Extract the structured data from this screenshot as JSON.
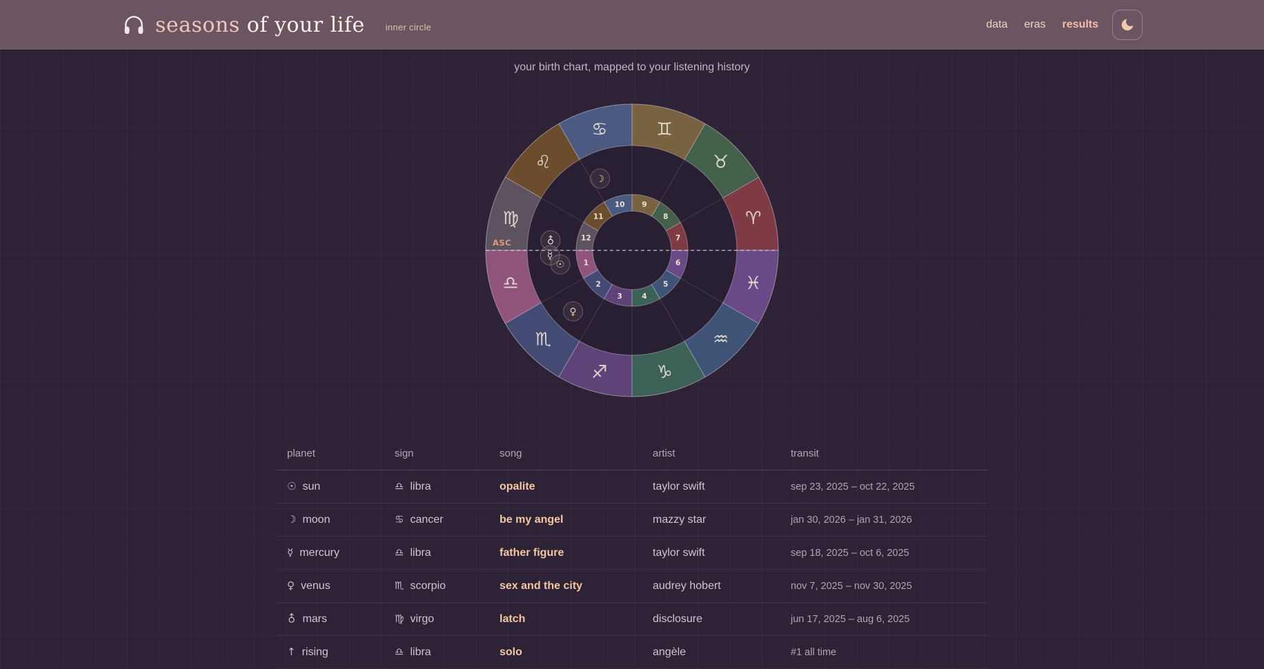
{
  "header": {
    "logo_icon": "headphones-icon",
    "title_primary": "seasons",
    "title_secondary": " of your life",
    "badge": "inner circle",
    "nav": [
      {
        "label": "data",
        "active": false
      },
      {
        "label": "eras",
        "active": false
      },
      {
        "label": "results",
        "active": true
      }
    ],
    "theme_toggle_icon": "moon-icon"
  },
  "subtitle": "your birth chart, mapped to your listening history",
  "chart": {
    "type": "natal-wheel",
    "asc_label": "ASC",
    "colors": {
      "interior": "#291f32",
      "asc": "#e29a77",
      "glyph": "rgba(232,224,212,0.92)",
      "house_number": "#ece2d3"
    },
    "signs": [
      {
        "name": "aries",
        "glyph": "♈",
        "color": "#7e3b45"
      },
      {
        "name": "taurus",
        "glyph": "♉",
        "color": "#42604a"
      },
      {
        "name": "gemini",
        "glyph": "♊",
        "color": "#786240"
      },
      {
        "name": "cancer",
        "glyph": "♋",
        "color": "#4a5a80"
      },
      {
        "name": "leo",
        "glyph": "♌",
        "color": "#6b4d2d"
      },
      {
        "name": "virgo",
        "glyph": "♍",
        "color": "#5c5260"
      },
      {
        "name": "libra",
        "glyph": "♎",
        "color": "#90537b"
      },
      {
        "name": "scorpio",
        "glyph": "♏",
        "color": "#434b75"
      },
      {
        "name": "sagittarius",
        "glyph": "♐",
        "color": "#5e4278"
      },
      {
        "name": "capricorn",
        "glyph": "♑",
        "color": "#3c6156"
      },
      {
        "name": "aquarius",
        "glyph": "♒",
        "color": "#3e5376"
      },
      {
        "name": "pisces",
        "glyph": "♓",
        "color": "#6a4a86"
      }
    ],
    "houses": [
      1,
      2,
      3,
      4,
      5,
      6,
      7,
      8,
      9,
      10,
      11,
      12
    ],
    "planets": [
      {
        "name": "moon",
        "glyph": "☽",
        "angle_deg": 114,
        "radius": 114,
        "color": "#f0cdaa"
      },
      {
        "name": "mars",
        "glyph": "♂",
        "angle_deg": 173,
        "radius": 119,
        "color": "#ecdfca",
        "rotate": -45
      },
      {
        "name": "mercury",
        "glyph": "☿",
        "angle_deg": 183.5,
        "radius": 119,
        "color": "#ecdfca"
      },
      {
        "name": "sun",
        "glyph": "☉",
        "angle_deg": 191,
        "radius": 106,
        "color": "#efc49e"
      },
      {
        "name": "venus",
        "glyph": "♀",
        "angle_deg": 226,
        "radius": 123,
        "color": "#eecaa4"
      }
    ]
  },
  "table": {
    "columns": [
      "planet",
      "sign",
      "song",
      "artist",
      "transit"
    ],
    "rows": [
      {
        "planet_glyph": "☉",
        "planet": "sun",
        "sign_glyph": "♎",
        "sign": "libra",
        "song": "opalite",
        "artist": "taylor swift",
        "transit": "sep 23, 2025 – oct 22, 2025"
      },
      {
        "planet_glyph": "☽",
        "planet": "moon",
        "sign_glyph": "♋",
        "sign": "cancer",
        "song": "be my angel",
        "artist": "mazzy star",
        "transit": "jan 30, 2026 – jan 31, 2026"
      },
      {
        "planet_glyph": "☿",
        "planet": "mercury",
        "sign_glyph": "♎",
        "sign": "libra",
        "song": "father figure",
        "artist": "taylor swift",
        "transit": "sep 18, 2025 – oct 6, 2025"
      },
      {
        "planet_glyph": "♀",
        "planet": "venus",
        "sign_glyph": "♏",
        "sign": "scorpio",
        "song": "sex and the city",
        "artist": "audrey hobert",
        "transit": "nov 7, 2025 – nov 30, 2025"
      },
      {
        "planet_glyph": "♂",
        "planet": "mars",
        "sign_glyph": "♍",
        "sign": "virgo",
        "song": "latch",
        "artist": "disclosure",
        "transit": "jun 17, 2025 – aug 6, 2025"
      },
      {
        "planet_glyph": "↑",
        "planet": "rising",
        "sign_glyph": "♎",
        "sign": "libra",
        "song": "solo",
        "artist": "angèle",
        "transit": "#1 all time"
      }
    ]
  }
}
